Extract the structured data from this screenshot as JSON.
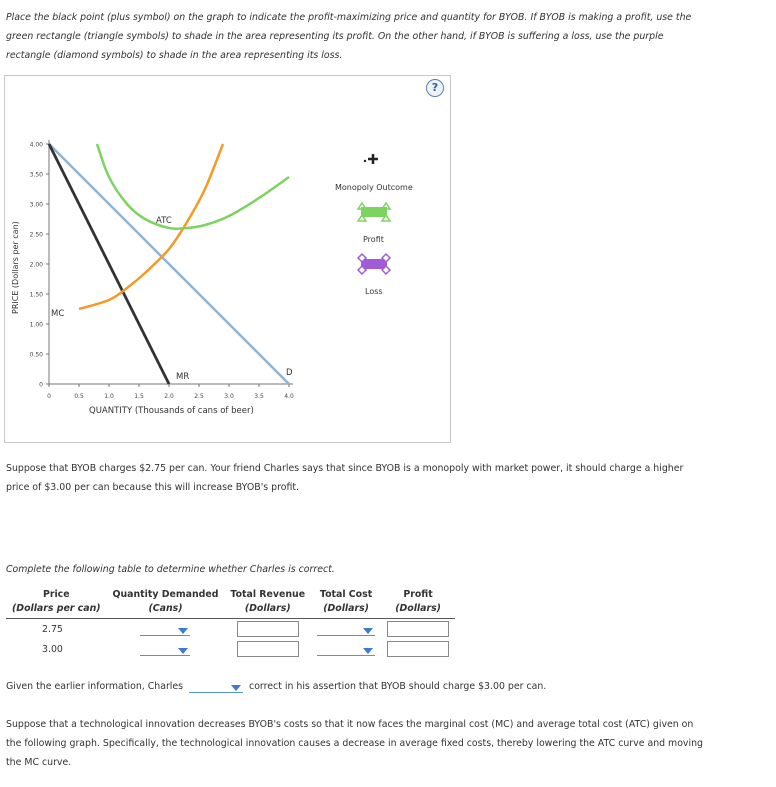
{
  "intro": "Place the black point (plus symbol) on the graph to indicate the profit-maximizing price and quantity for BYOB. If BYOB is making a profit, use the green rectangle (triangle symbols) to shade in the area representing its profit. On the other hand, if BYOB is suffering a loss, use the purple rectangle (diamond symbols) to shade in the area representing its loss.",
  "help_icon": "?",
  "graph": {
    "y_axis_label": "PRICE (Dollars per can)",
    "x_axis_label": "QUANTITY (Thousands of cans of beer)",
    "curve_labels": {
      "atc": "ATC",
      "mc": "MC",
      "mr": "MR",
      "d": "D"
    },
    "colors": {
      "atc": "#7dd35f",
      "mc": "#f59a23",
      "demand": "#8fb3d3",
      "mr": "#333333",
      "profit": "#7dd35f",
      "loss": "#a25bd6"
    },
    "palette": {
      "monopoly_label": "Monopoly Outcome",
      "profit_label": "Profit",
      "loss_label": "Loss"
    }
  },
  "chart_data": {
    "type": "line",
    "xlabel": "QUANTITY (Thousands of cans of beer)",
    "ylabel": "PRICE (Dollars per can)",
    "xlim": [
      0,
      4.0
    ],
    "ylim": [
      0,
      4.0
    ],
    "x_ticks": [
      "0",
      "0.5",
      "1.0",
      "1.5",
      "2.0",
      "2.5",
      "3.0",
      "3.5",
      "4.0"
    ],
    "y_ticks": [
      "0",
      "0.50",
      "1.00",
      "1.50",
      "2.00",
      "2.50",
      "3.00",
      "3.50",
      "4.00"
    ],
    "series": [
      {
        "name": "D",
        "x": [
          0,
          4.0
        ],
        "y": [
          4.0,
          0
        ]
      },
      {
        "name": "MR",
        "x": [
          0,
          2.0
        ],
        "y": [
          4.0,
          0
        ]
      },
      {
        "name": "MC",
        "x": [
          0.5,
          1.0,
          1.3,
          1.6,
          2.0,
          2.3,
          2.6,
          2.9
        ],
        "y": [
          1.25,
          1.4,
          1.6,
          1.85,
          2.25,
          2.7,
          3.25,
          4.0
        ]
      },
      {
        "name": "ATC",
        "x": [
          0.8,
          1.0,
          1.3,
          1.6,
          2.0,
          2.3,
          2.6,
          3.0,
          3.5,
          4.0
        ],
        "y": [
          4.0,
          3.45,
          3.0,
          2.75,
          2.6,
          2.6,
          2.65,
          2.8,
          3.1,
          3.45
        ]
      }
    ]
  },
  "question1": "Suppose that BYOB charges $2.75 per can. Your friend Charles says that since BYOB is a monopoly with market power, it should charge a higher price of $3.00 per can because this will increase BYOB's profit.",
  "question2": "Complete the following table to determine whether Charles is correct.",
  "table": {
    "headers": [
      "Price",
      "Quantity Demanded",
      "Total Revenue",
      "Total Cost",
      "Profit"
    ],
    "subheaders": [
      "(Dollars per can)",
      "(Cans)",
      "(Dollars)",
      "(Dollars)",
      "(Dollars)"
    ],
    "rows": [
      {
        "price": "2.75"
      },
      {
        "price": "3.00"
      }
    ]
  },
  "charles": {
    "prefix": "Given the earlier information, Charles",
    "suffix": "correct in his assertion that BYOB should charge $3.00 per can."
  },
  "question3": "Suppose that a technological innovation decreases BYOB's costs so that it now faces the marginal cost (MC) and average total cost (ATC) given on the following graph. Specifically, the technological innovation causes a decrease in average fixed costs, thereby lowering the ATC curve and moving the MC curve."
}
